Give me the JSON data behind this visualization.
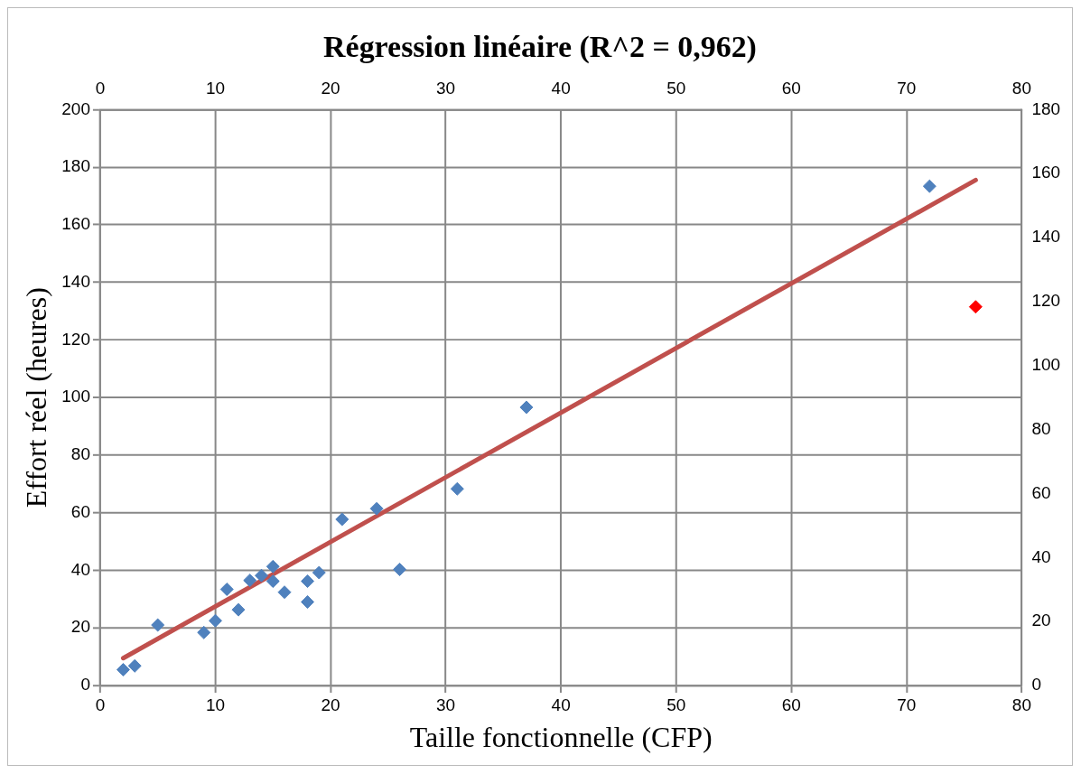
{
  "chart_data": {
    "type": "scatter",
    "title": "Régression linéaire (R^2 = 0,962)",
    "xlabel": "Taille fonctionnelle (CFP)",
    "ylabel": "Effort réel (heures)",
    "series": [
      {
        "color": "#4f81bd",
        "x": [
          2,
          3,
          5,
          9,
          10,
          11,
          12,
          13,
          14,
          15,
          15,
          16,
          18,
          18,
          19,
          21,
          24,
          26,
          31,
          37,
          72
        ],
        "values": [
          5.5,
          6.8,
          21,
          18.4,
          22.5,
          33.4,
          26.3,
          36.5,
          38.2,
          41.3,
          36.2,
          32.4,
          36.2,
          29,
          39.2,
          57.7,
          61.4,
          40.3,
          68.3,
          96.6,
          173.4
        ]
      },
      {
        "color": "#ff0000",
        "x": [
          76
        ],
        "values": [
          131.5
        ]
      },
      {
        "type": "line",
        "color": "#c0504d",
        "x": [
          2,
          76
        ],
        "values": [
          9.5,
          175.5
        ],
        "marker": "none"
      }
    ],
    "xlim": [
      0,
      80
    ],
    "xticks": [
      0,
      10,
      20,
      30,
      40,
      50,
      60,
      70,
      80
    ],
    "ylim": [
      0,
      200
    ],
    "yticks": [
      0,
      20,
      40,
      60,
      80,
      100,
      120,
      140,
      160,
      180,
      200
    ],
    "x2lim": [
      0,
      80
    ],
    "x2ticks": [
      0,
      10,
      20,
      30,
      40,
      50,
      60,
      70,
      80
    ],
    "y2lim": [
      0,
      180
    ],
    "y2ticks": [
      0,
      20,
      40,
      60,
      80,
      100,
      120,
      140,
      160,
      180
    ],
    "grid": true,
    "legend": false,
    "marker": "diamond"
  }
}
